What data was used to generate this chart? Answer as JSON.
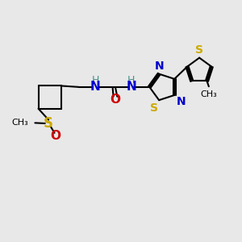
{
  "bg_color": "#e8e8e8",
  "black": "#000000",
  "blue": "#0000cc",
  "teal": "#4a9090",
  "red": "#cc0000",
  "gold": "#ccaa00",
  "bond_lw": 1.5,
  "font_size": 10,
  "fig_w": 3.0,
  "fig_h": 3.0,
  "dpi": 100,
  "xlim": [
    0,
    10
  ],
  "ylim": [
    0,
    10
  ]
}
